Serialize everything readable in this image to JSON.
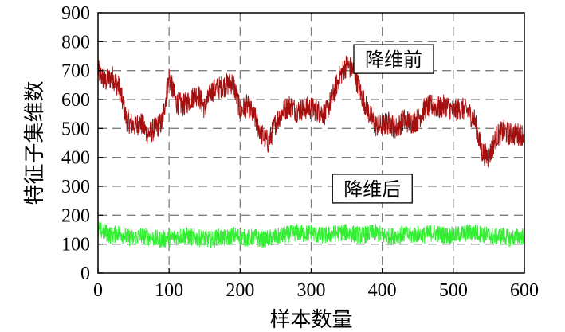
{
  "chart_data": {
    "type": "line",
    "xlabel": "样本数量",
    "ylabel": "特征子集维数",
    "xlim": [
      0,
      600
    ],
    "ylim": [
      0,
      900
    ],
    "xticks": [
      0,
      100,
      200,
      300,
      400,
      500,
      600
    ],
    "yticks": [
      0,
      100,
      200,
      300,
      400,
      500,
      600,
      700,
      800,
      900
    ],
    "grid": true,
    "grid_style": "dashed",
    "annotations": [
      {
        "text": "降维前",
        "at_x": 360,
        "at_y": 740
      },
      {
        "text": "降维后",
        "at_x": 330,
        "at_y": 292
      }
    ],
    "series": [
      {
        "color": "#a50f0f",
        "x": [
          0,
          10,
          20,
          30,
          40,
          50,
          60,
          70,
          80,
          90,
          100,
          110,
          120,
          130,
          140,
          150,
          160,
          170,
          180,
          190,
          200,
          210,
          220,
          230,
          240,
          250,
          260,
          270,
          280,
          290,
          300,
          310,
          320,
          330,
          340,
          350,
          360,
          370,
          380,
          390,
          400,
          410,
          420,
          430,
          440,
          450,
          460,
          470,
          480,
          490,
          500,
          510,
          520,
          530,
          540,
          550,
          560,
          570,
          580,
          590,
          600
        ],
        "values": [
          700,
          660,
          680,
          640,
          530,
          510,
          520,
          480,
          500,
          520,
          680,
          590,
          580,
          600,
          620,
          570,
          630,
          640,
          650,
          660,
          560,
          580,
          540,
          480,
          450,
          520,
          560,
          580,
          560,
          570,
          570,
          560,
          550,
          610,
          680,
          720,
          700,
          620,
          560,
          510,
          510,
          520,
          500,
          530,
          520,
          530,
          570,
          580,
          570,
          580,
          560,
          570,
          560,
          530,
          420,
          400,
          470,
          490,
          480,
          480,
          480
        ],
        "spread": 40
      },
      {
        "color": "#33ee33",
        "x": [
          0,
          10,
          20,
          30,
          40,
          50,
          60,
          70,
          80,
          90,
          100,
          110,
          120,
          130,
          140,
          150,
          160,
          170,
          180,
          190,
          200,
          210,
          220,
          230,
          240,
          250,
          260,
          270,
          280,
          290,
          300,
          310,
          320,
          330,
          340,
          350,
          360,
          370,
          380,
          390,
          400,
          410,
          420,
          430,
          440,
          450,
          460,
          470,
          480,
          490,
          500,
          510,
          520,
          530,
          540,
          550,
          560,
          570,
          580,
          590,
          600
        ],
        "values": [
          150,
          140,
          130,
          140,
          125,
          120,
          130,
          125,
          120,
          115,
          120,
          125,
          130,
          125,
          120,
          120,
          115,
          125,
          120,
          130,
          125,
          120,
          125,
          115,
          120,
          125,
          130,
          135,
          140,
          135,
          140,
          130,
          130,
          135,
          140,
          140,
          135,
          130,
          135,
          140,
          130,
          125,
          130,
          135,
          130,
          135,
          130,
          140,
          135,
          130,
          130,
          135,
          140,
          140,
          135,
          130,
          125,
          130,
          120,
          125,
          130
        ],
        "spread": 30
      }
    ]
  }
}
